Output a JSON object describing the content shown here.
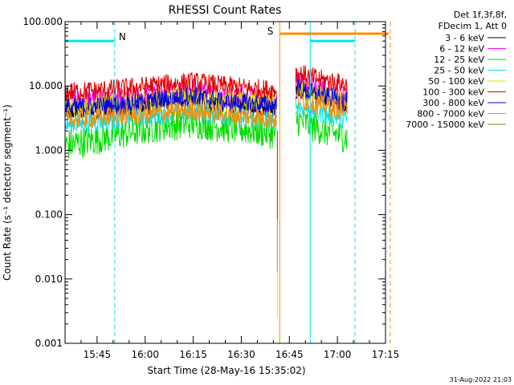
{
  "chart_data": {
    "type": "line",
    "title": "RHESSI Count Rates",
    "xlabel": "Start Time (28-May-16 15:35:02)",
    "ylabel": "Count Rate (s⁻¹ detector segment⁻¹)",
    "yscale": "log",
    "ylim": [
      0.001,
      100.0
    ],
    "yticks": [
      "100.000",
      "10.000",
      "1.000",
      "0.100",
      "0.010",
      "0.001"
    ],
    "xlim_minutes": [
      935,
      1035
    ],
    "xticks": [
      "15:45",
      "16:00",
      "16:15",
      "16:30",
      "16:45",
      "17:00",
      "17:15"
    ],
    "footer": "31-Aug-2022 21:03",
    "legend_header": [
      "Det 1f,3f,8f,",
      "FDecim 1, Att 0"
    ],
    "colors": {
      "axis": "#000000",
      "night": "#00e5ee",
      "saa": "#ff8c00"
    },
    "series": [
      {
        "name": "3 - 6 keV",
        "color": "#000000",
        "segments": [
          {
            "x": [
              935.0,
              945.0,
              955.0,
              965.0,
              975.0,
              985.0,
              995.0,
              1001.0
            ],
            "y": [
              4.0,
              4.3,
              4.7,
              5.5,
              6.2,
              5.0,
              4.8,
              4.6
            ]
          },
          {
            "x": [
              1007.0,
              1015.0,
              1023.0
            ],
            "y": [
              10.0,
              7.0,
              5.2
            ]
          }
        ]
      },
      {
        "name": "6 - 12 keV",
        "color": "#ff00ff",
        "segments": [
          {
            "x": [
              935.0,
              945.0,
              955.0,
              965.0,
              975.0,
              985.0,
              995.0,
              1001.0
            ],
            "y": [
              6.0,
              6.3,
              6.7,
              7.5,
              9.5,
              7.0,
              6.8,
              6.4
            ]
          },
          {
            "x": [
              1007.0,
              1015.0,
              1023.0
            ],
            "y": [
              12.0,
              9.0,
              7.0
            ]
          }
        ]
      },
      {
        "name": "12 - 25 keV",
        "color": "#00dd00",
        "segments": [
          {
            "x": [
              935.0,
              945.0,
              955.0,
              965.0,
              975.0,
              985.0,
              995.0,
              1001.0
            ],
            "y": [
              1.2,
              1.5,
              1.9,
              2.4,
              2.7,
              2.3,
              2.0,
              1.8
            ]
          },
          {
            "x": [
              1007.0,
              1015.0,
              1023.0
            ],
            "y": [
              3.0,
              2.1,
              1.6
            ]
          }
        ]
      },
      {
        "name": "25 - 50 keV",
        "color": "#00e5ee",
        "segments": [
          {
            "x": [
              935.0,
              945.0,
              955.0,
              965.0,
              975.0,
              985.0,
              995.0,
              1001.0
            ],
            "y": [
              2.5,
              2.8,
              3.2,
              3.6,
              4.0,
              3.4,
              3.0,
              2.9
            ]
          },
          {
            "x": [
              1007.0,
              1015.0,
              1023.0
            ],
            "y": [
              5.0,
              3.8,
              3.0
            ]
          }
        ]
      },
      {
        "name": "50 - 100 keV",
        "color": "#e0e000",
        "segments": [
          {
            "x": [
              935.0,
              945.0,
              955.0,
              965.0,
              975.0,
              985.0,
              995.0,
              1001.0
            ],
            "y": [
              5.0,
              5.2,
              5.5,
              6.2,
              7.0,
              6.0,
              5.7,
              5.5
            ]
          },
          {
            "x": [
              1007.0,
              1015.0,
              1023.0
            ],
            "y": [
              9.0,
              7.0,
              6.0
            ]
          }
        ]
      },
      {
        "name": "100 - 300 keV",
        "color": "#e00000",
        "segments": [
          {
            "x": [
              935.0,
              945.0,
              955.0,
              965.0,
              975.0,
              985.0,
              995.0,
              1001.0
            ],
            "y": [
              8.0,
              8.5,
              9.3,
              10.5,
              11.5,
              10.0,
              9.0,
              8.6
            ]
          },
          {
            "x": [
              1007.0,
              1015.0,
              1023.0
            ],
            "y": [
              16.0,
              12.5,
              10.5
            ]
          }
        ]
      },
      {
        "name": "300 - 800 keV",
        "color": "#0000ee",
        "segments": [
          {
            "x": [
              935.0,
              945.0,
              955.0,
              965.0,
              975.0,
              985.0,
              995.0,
              1001.0
            ],
            "y": [
              4.5,
              4.8,
              5.2,
              6.0,
              7.0,
              5.5,
              5.2,
              5.0
            ]
          },
          {
            "x": [
              1007.0,
              1015.0,
              1023.0
            ],
            "y": [
              9.0,
              7.0,
              5.6
            ]
          }
        ]
      },
      {
        "name": "800 - 7000 keV",
        "color": "#ff8c00",
        "segments": [
          {
            "x": [
              935.0,
              945.0,
              955.0,
              965.0,
              975.0,
              985.0,
              995.0,
              1001.0
            ],
            "y": [
              3.0,
              3.2,
              3.5,
              3.8,
              4.2,
              3.6,
              3.3,
              3.1
            ]
          },
          {
            "x": [
              1007.0,
              1015.0,
              1023.0
            ],
            "y": [
              6.5,
              5.0,
              4.2
            ]
          }
        ]
      },
      {
        "name": "7000 - 15000 keV",
        "color": "#808000",
        "segments": []
      }
    ],
    "night_intervals": [
      {
        "label": "N",
        "bar_value": 50,
        "start": 935.0,
        "end": 950.5
      },
      {
        "label": "",
        "bar_value": 50,
        "start": 1011.5,
        "end": 1025.5
      }
    ],
    "saa_interval": {
      "label": "S",
      "bar_value": 65,
      "start": 1002.0,
      "end": 1037.0
    },
    "markers": [
      {
        "kind": "night-line",
        "time": 935.0,
        "style": "solid"
      },
      {
        "kind": "night-line",
        "time": 950.5,
        "style": "dashed"
      },
      {
        "kind": "saa-line",
        "time": 1002.0,
        "style": "solid"
      },
      {
        "kind": "night-line",
        "time": 1011.5,
        "style": "solid"
      },
      {
        "kind": "saa-line",
        "time": 1037.0,
        "style": "dashed"
      },
      {
        "kind": "night-line",
        "time": 1025.5,
        "style": "dashed"
      }
    ],
    "grid": false,
    "legend_position": "top-right outside"
  }
}
